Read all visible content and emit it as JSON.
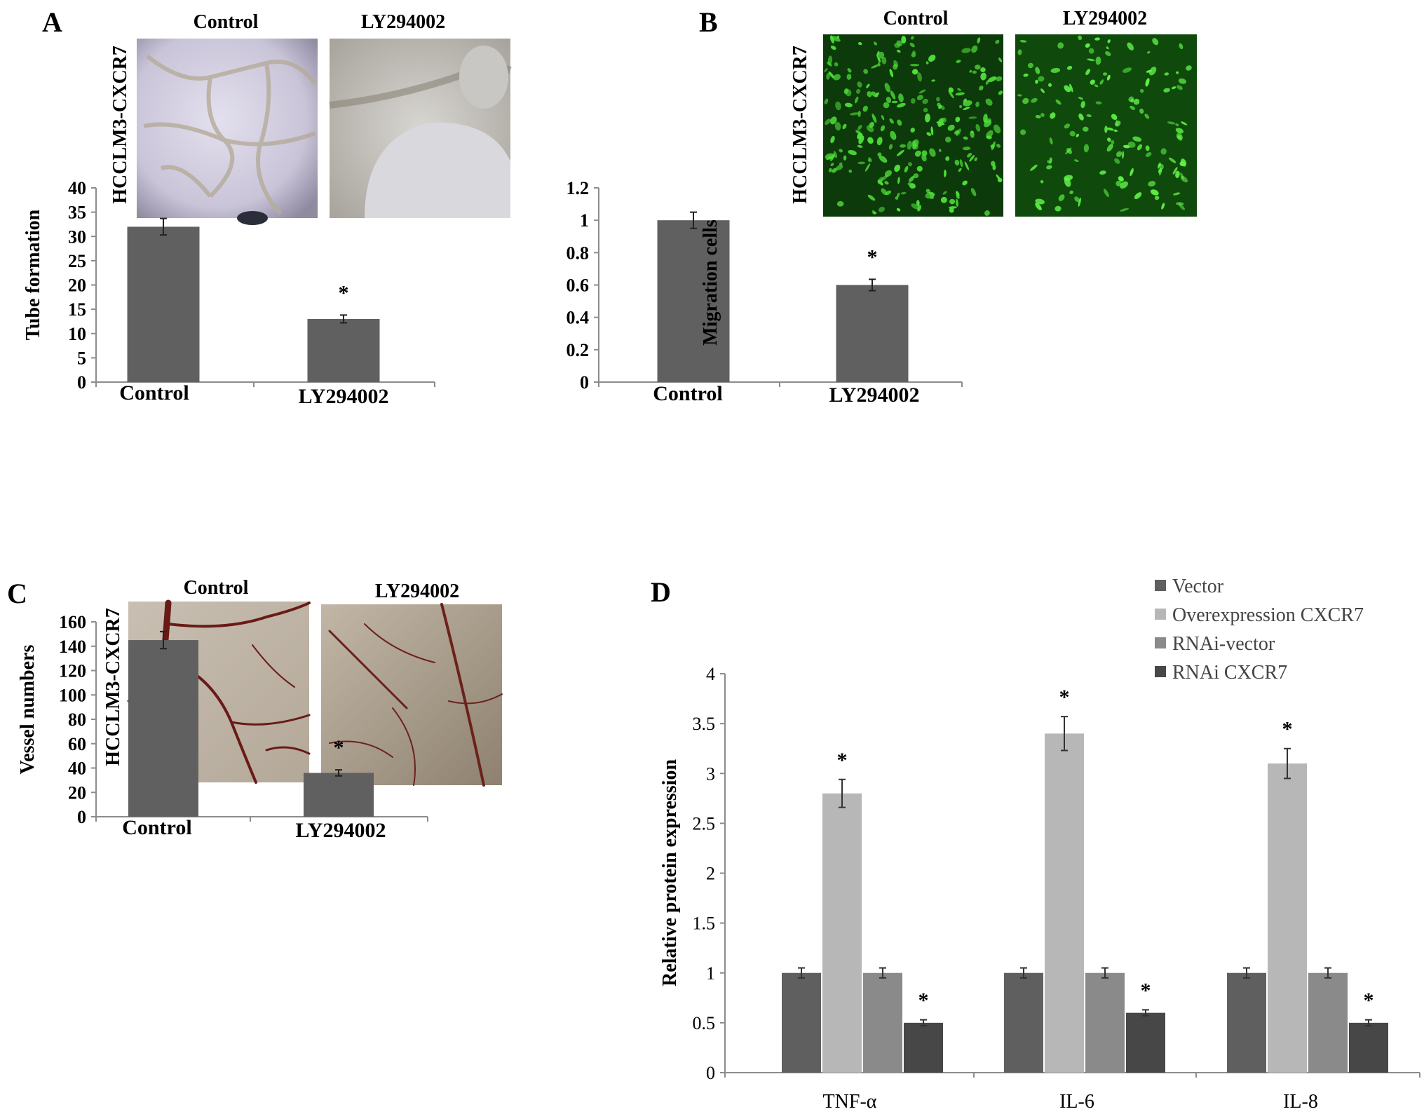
{
  "panels": {
    "A": {
      "letter": "A",
      "image_titles": [
        "Control",
        "LY294002"
      ],
      "side_label": "HCCLM3-CXCR7",
      "image_style": "tube"
    },
    "B": {
      "letter": "B",
      "image_titles": [
        "Control",
        "LY294002"
      ],
      "side_label": "HCCLM3-CXCR7",
      "image_style": "fluor"
    },
    "C": {
      "letter": "C",
      "image_titles": [
        "Control",
        "LY294002"
      ],
      "side_label": "HCCLM3-CXCR7",
      "image_style": "vessel"
    },
    "D": {
      "letter": "D"
    }
  },
  "colors": {
    "bar": "#606060",
    "vector": "#5f5f5f",
    "overexpression": "#b7b7b7",
    "rnai_vector": "#8a8a8a",
    "rnai_cxcr7": "#474747",
    "axis": "#8c8c8c",
    "text": "#000000"
  },
  "chart_data": [
    {
      "panel": "A",
      "type": "bar",
      "categories": [
        "Control",
        "LY294002"
      ],
      "values": [
        32,
        13
      ],
      "errors": [
        1.7,
        0.8
      ],
      "annotations": [
        "",
        "*"
      ],
      "ylabel": "Tube formation",
      "ylim": [
        0,
        40
      ],
      "yticks": [
        0,
        5,
        10,
        15,
        20,
        25,
        30,
        35,
        40
      ],
      "ytick_labels": [
        "0",
        "5",
        "10",
        "15",
        "20",
        "25",
        "30",
        "35",
        "40"
      ]
    },
    {
      "panel": "B",
      "type": "bar",
      "categories": [
        "Control",
        "LY294002"
      ],
      "values": [
        1.0,
        0.6
      ],
      "errors": [
        0.05,
        0.035
      ],
      "annotations": [
        "",
        "*"
      ],
      "ylabel": "Migration cells",
      "ylim": [
        0,
        1.2
      ],
      "yticks": [
        0,
        0.2,
        0.4,
        0.6,
        0.8,
        1.0,
        1.2
      ],
      "ytick_labels": [
        "0",
        "0.2",
        "0.4",
        "0.6",
        "0.8",
        "1",
        "1.2"
      ]
    },
    {
      "panel": "C",
      "type": "bar",
      "categories": [
        "Control",
        "LY294002"
      ],
      "values": [
        145,
        36
      ],
      "errors": [
        7,
        2.5
      ],
      "annotations": [
        "",
        "*"
      ],
      "ylabel": "Vessel  numbers",
      "ylim": [
        0,
        160
      ],
      "yticks": [
        0,
        20,
        40,
        60,
        80,
        100,
        120,
        140,
        160
      ],
      "ytick_labels": [
        "0",
        "20",
        "40",
        "60",
        "80",
        "100",
        "120",
        "140",
        "160"
      ]
    },
    {
      "panel": "D",
      "type": "bar",
      "categories": [
        "TNF-α",
        "IL-6",
        "IL-8"
      ],
      "series": [
        {
          "name": "Vector",
          "values": [
            1.0,
            1.0,
            1.0
          ],
          "errors": [
            0.05,
            0.05,
            0.05
          ],
          "annotations": [
            "",
            "",
            ""
          ]
        },
        {
          "name": "Overexpression CXCR7",
          "values": [
            2.8,
            3.4,
            3.1
          ],
          "errors": [
            0.14,
            0.17,
            0.15
          ],
          "annotations": [
            "*",
            "*",
            "*"
          ]
        },
        {
          "name": "RNAi-vector",
          "values": [
            1.0,
            1.0,
            1.0
          ],
          "errors": [
            0.05,
            0.05,
            0.05
          ],
          "annotations": [
            "",
            "",
            ""
          ]
        },
        {
          "name": "RNAi CXCR7",
          "values": [
            0.5,
            0.6,
            0.5
          ],
          "errors": [
            0.03,
            0.03,
            0.03
          ],
          "annotations": [
            "*",
            "*",
            "*"
          ]
        }
      ],
      "ylabel": "Relative protein expression",
      "ylim": [
        0,
        4
      ],
      "yticks": [
        0,
        0.5,
        1,
        1.5,
        2,
        2.5,
        3,
        3.5,
        4
      ],
      "ytick_labels": [
        "0",
        "0.5",
        "1",
        "1.5",
        "2",
        "2.5",
        "3",
        "3.5",
        "4"
      ],
      "legend": "top-right"
    }
  ]
}
